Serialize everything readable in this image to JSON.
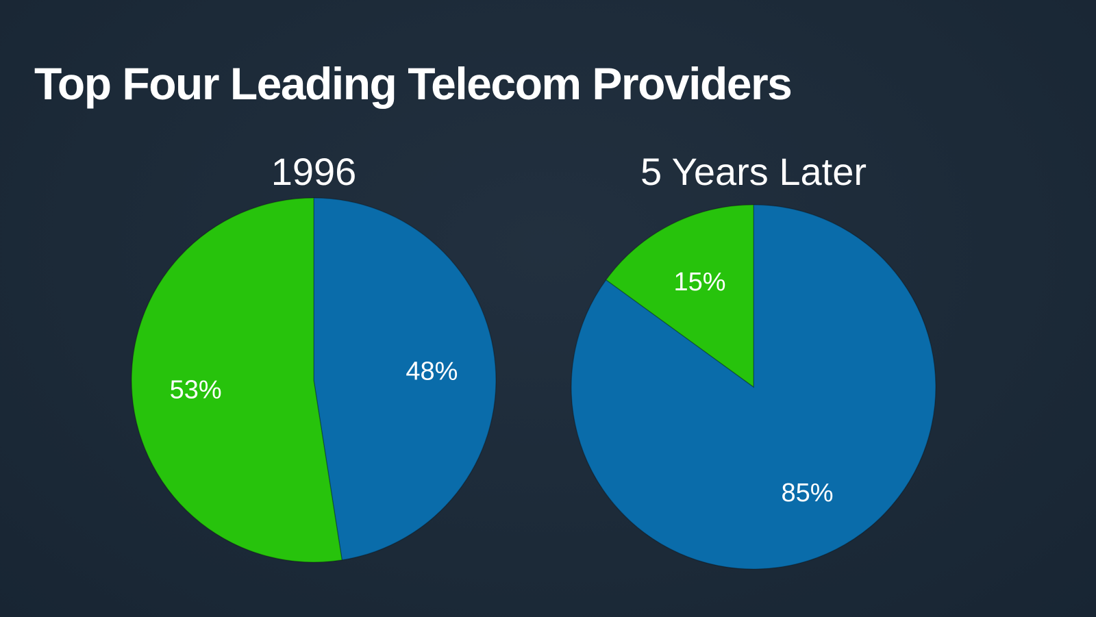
{
  "title": "Top Four Leading Telecom Providers",
  "colors": {
    "background": "#1d2b3a",
    "green": "#27c30c",
    "blue": "#0a6caa",
    "text": "#ffffff"
  },
  "chart_data": [
    {
      "type": "pie",
      "title": "1996",
      "slices": [
        {
          "label": "48%",
          "value": 48,
          "color": "#0a6caa"
        },
        {
          "label": "53%",
          "value": 53,
          "color": "#27c30c"
        }
      ]
    },
    {
      "type": "pie",
      "title": "5 Years Later",
      "slices": [
        {
          "label": "85%",
          "value": 85,
          "color": "#0a6caa"
        },
        {
          "label": "15%",
          "value": 15,
          "color": "#27c30c"
        }
      ]
    }
  ]
}
